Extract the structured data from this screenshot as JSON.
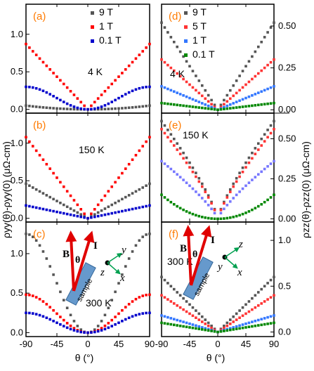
{
  "chart_data": [
    {
      "panel": "(a)",
      "temperature": "4  K",
      "legend": [
        "9 T",
        "1 T",
        "0.1 T"
      ],
      "ylim": [
        -0.05,
        1.4
      ],
      "yticks": [
        "0.0",
        "0.5",
        "1.0"
      ],
      "series": [
        {
          "name": "9 T",
          "color": "#555555",
          "fn": "x",
          "A": 0.05
        },
        {
          "name": "1 T",
          "color": "#ff0000",
          "fn": "abs",
          "A": 0.87
        },
        {
          "name": "0.1 T",
          "color": "#0000cc",
          "fn": "sin",
          "A": 0.3
        }
      ]
    },
    {
      "panel": "(b)",
      "temperature": "150 K",
      "ylim": [
        -0.05,
        1.4
      ],
      "yticks": [
        "0.0",
        "0.5",
        "1.0"
      ],
      "series": [
        {
          "name": "9 T",
          "color": "#555555",
          "fn": "abs",
          "A": 0.46
        },
        {
          "name": "1 T",
          "color": "#ff0000",
          "fn": "abs",
          "A": 1.08
        },
        {
          "name": "0.1 T",
          "color": "#0000cc",
          "fn": "abs",
          "A": 0.17
        }
      ]
    },
    {
      "panel": "(c)",
      "temperature": "300 K",
      "diagram": {
        "B": "B",
        "I": "I",
        "theta": "θ",
        "sample": "sample",
        "x": "x",
        "y": "y",
        "z": "z"
      },
      "ylim": [
        -0.05,
        1.4
      ],
      "yticks": [
        "0.0",
        "0.5",
        "1.0"
      ],
      "series": [
        {
          "name": "9 T",
          "color": "#555555",
          "fn": "sin",
          "A": 1.25
        },
        {
          "name": "1 T",
          "color": "#ff0000",
          "fn": "sin",
          "A": 0.48
        },
        {
          "name": "0.1 T",
          "color": "#0000cc",
          "fn": "sin",
          "A": 0.25
        }
      ]
    },
    {
      "panel": "(d)",
      "temperature": "4 K",
      "legend": [
        "9 T",
        "5 T",
        "1 T",
        "0.1 T"
      ],
      "ylim": [
        -0.02,
        0.63
      ],
      "yticks": [
        "0.00",
        "0.25",
        "0.50"
      ],
      "series": [
        {
          "name": "9 T",
          "color": "#555555",
          "fn": "abs",
          "A": 0.52
        },
        {
          "name": "5 T",
          "color": "#ff3333",
          "fn": "abs",
          "A": 0.3
        },
        {
          "name": "1 T",
          "color": "#3377ff",
          "fn": "abs",
          "A": 0.14
        },
        {
          "name": "0.1 T",
          "color": "#008800",
          "fn": "abs",
          "A": 0.04
        }
      ]
    },
    {
      "panel": "(e)",
      "temperature": "150 K",
      "ylim": [
        -0.02,
        0.66
      ],
      "yticks": [
        "0.00",
        "0.25",
        "0.50"
      ],
      "series": [
        {
          "name": "9 T",
          "color": "#555555",
          "fn": "sqrt",
          "A": 0.61
        },
        {
          "name": "5 T",
          "color": "#ff3333",
          "fn": "sqrt",
          "A": 0.56
        },
        {
          "name": "1 T",
          "color": "#7777ff",
          "fn": "sqrt",
          "A": 0.36
        },
        {
          "name": "0.1 T",
          "color": "#008800",
          "fn": "x",
          "A": 0.15
        }
      ]
    },
    {
      "panel": "(f)",
      "temperature": "300 K",
      "diagram": {
        "B": "B",
        "I": "I",
        "theta": "θ",
        "sample": "sample",
        "x": "x",
        "y": "y",
        "z": "z"
      },
      "ylim": [
        -0.05,
        1.2
      ],
      "yticks": [
        "0.0",
        "0.5",
        "1.0"
      ],
      "series": [
        {
          "name": "9 T",
          "color": "#555555",
          "fn": "abs",
          "A": 0.6
        },
        {
          "name": "5 T",
          "color": "#ff3333",
          "fn": "abs",
          "A": 0.4
        },
        {
          "name": "1 T",
          "color": "#3377ff",
          "fn": "abs",
          "A": 0.18
        },
        {
          "name": "0.1 T",
          "color": "#008800",
          "fn": "abs",
          "A": 0.1
        }
      ]
    }
  ],
  "x_axis": {
    "ticks": [
      "-90",
      "-45",
      "0",
      "45",
      "90"
    ],
    "values": [
      -90,
      -45,
      0,
      45,
      90
    ],
    "label": "θ (°)"
  },
  "left_ylabel": "ρyy(θ)-ρyy(0) (μΩ-cm)",
  "right_ylabel": "ρzz(θ)-ρzz(0) (μΩ-cm)"
}
